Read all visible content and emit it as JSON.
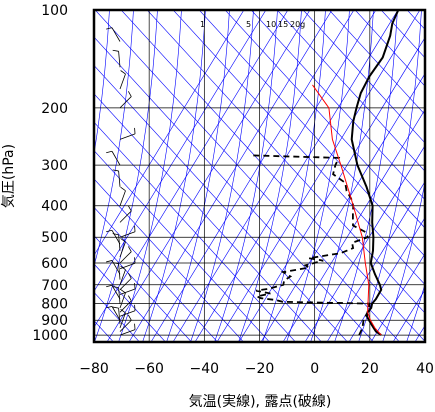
{
  "chart_data": {
    "type": "line",
    "title": "",
    "xlabel": "気温(実線), 露点(破線)",
    "ylabel": "気圧(hPa)",
    "xlim": [
      -80,
      40
    ],
    "ylim_pressure": [
      1050,
      100
    ],
    "y_scale": "log",
    "x_ticks": [
      -80,
      -60,
      -40,
      -20,
      0,
      20,
      40
    ],
    "x_tick_labels": [
      "−80",
      "−60",
      "−40",
      "−20",
      "0",
      "20",
      "40"
    ],
    "y_ticks": [
      100,
      200,
      300,
      400,
      500,
      600,
      700,
      800,
      900,
      1000
    ],
    "y_tick_labels": [
      "100",
      "200",
      "300",
      "400",
      "500",
      "600",
      "700",
      "800",
      "900",
      "1000"
    ],
    "mixing_ratio_labels": [
      "1",
      "5",
      "10",
      "15",
      "20g"
    ],
    "grid": true,
    "colors": {
      "temperature": "#000000",
      "dewpoint": "#000000",
      "parcel": "#ff0000",
      "isopleths": "#0000ff",
      "grid": "#000000"
    },
    "series": [
      {
        "style": "solid",
        "points": [
          [
            1000,
            22
          ],
          [
            975,
            19
          ],
          [
            950,
            17
          ],
          [
            925,
            15
          ],
          [
            900,
            13
          ],
          [
            875,
            11
          ],
          [
            850,
            10
          ],
          [
            825,
            10
          ],
          [
            800,
            9
          ],
          [
            775,
            9
          ],
          [
            750,
            8.5
          ],
          [
            725,
            8
          ],
          [
            700,
            6
          ],
          [
            650,
            1
          ],
          [
            600,
            -4
          ],
          [
            550,
            -7
          ],
          [
            500,
            -11
          ],
          [
            450,
            -16
          ],
          [
            400,
            -21
          ],
          [
            350,
            -29
          ],
          [
            300,
            -39
          ],
          [
            250,
            -49
          ],
          [
            220,
            -54
          ],
          [
            200,
            -57
          ],
          [
            180,
            -60
          ],
          [
            160,
            -62
          ],
          [
            140,
            -63
          ],
          [
            120,
            -67
          ],
          [
            110,
            -70
          ],
          [
            100,
            -72
          ]
        ]
      },
      {
        "style": "dashed",
        "points": [
          [
            1000,
            14
          ],
          [
            975,
            13.5
          ],
          [
            950,
            13
          ],
          [
            925,
            12
          ],
          [
            900,
            11
          ],
          [
            875,
            10.5
          ],
          [
            850,
            10
          ],
          [
            825,
            9
          ],
          [
            800,
            8
          ],
          [
            790,
            -24
          ],
          [
            780,
            -27
          ],
          [
            770,
            -33
          ],
          [
            760,
            -35
          ],
          [
            745,
            -31
          ],
          [
            730,
            -37
          ],
          [
            720,
            -33
          ],
          [
            700,
            -29
          ],
          [
            680,
            -30
          ],
          [
            660,
            -29
          ],
          [
            640,
            -33
          ],
          [
            620,
            -25
          ],
          [
            610,
            -27
          ],
          [
            590,
            -22
          ],
          [
            580,
            -28
          ],
          [
            560,
            -18
          ],
          [
            540,
            -15
          ],
          [
            520,
            -17
          ],
          [
            500,
            -13
          ],
          [
            480,
            -16
          ],
          [
            460,
            -22
          ],
          [
            440,
            -24
          ],
          [
            420,
            -26
          ],
          [
            400,
            -28
          ],
          [
            380,
            -31
          ],
          [
            360,
            -35
          ],
          [
            340,
            -38
          ],
          [
            320,
            -45
          ],
          [
            300,
            -47
          ],
          [
            285,
            -48
          ],
          [
            280,
            -80
          ]
        ]
      },
      {
        "style": "solid",
        "points": [
          [
            1000,
            22
          ],
          [
            950,
            17.5
          ],
          [
            900,
            13.5
          ],
          [
            850,
            10
          ],
          [
            800,
            7.5
          ],
          [
            700,
            2
          ],
          [
            600,
            -6
          ],
          [
            500,
            -15
          ],
          [
            400,
            -28
          ],
          [
            300,
            -45
          ],
          [
            250,
            -56
          ],
          [
            200,
            -67
          ],
          [
            170,
            -80
          ]
        ]
      }
    ],
    "wind_barbs_pressure": [
      1000,
      975,
      950,
      925,
      900,
      875,
      850,
      825,
      800,
      775,
      750,
      725,
      700,
      675,
      650,
      625,
      600,
      575,
      550,
      525,
      500,
      450,
      400,
      350,
      300,
      250,
      200,
      175,
      150,
      125,
      100
    ]
  }
}
